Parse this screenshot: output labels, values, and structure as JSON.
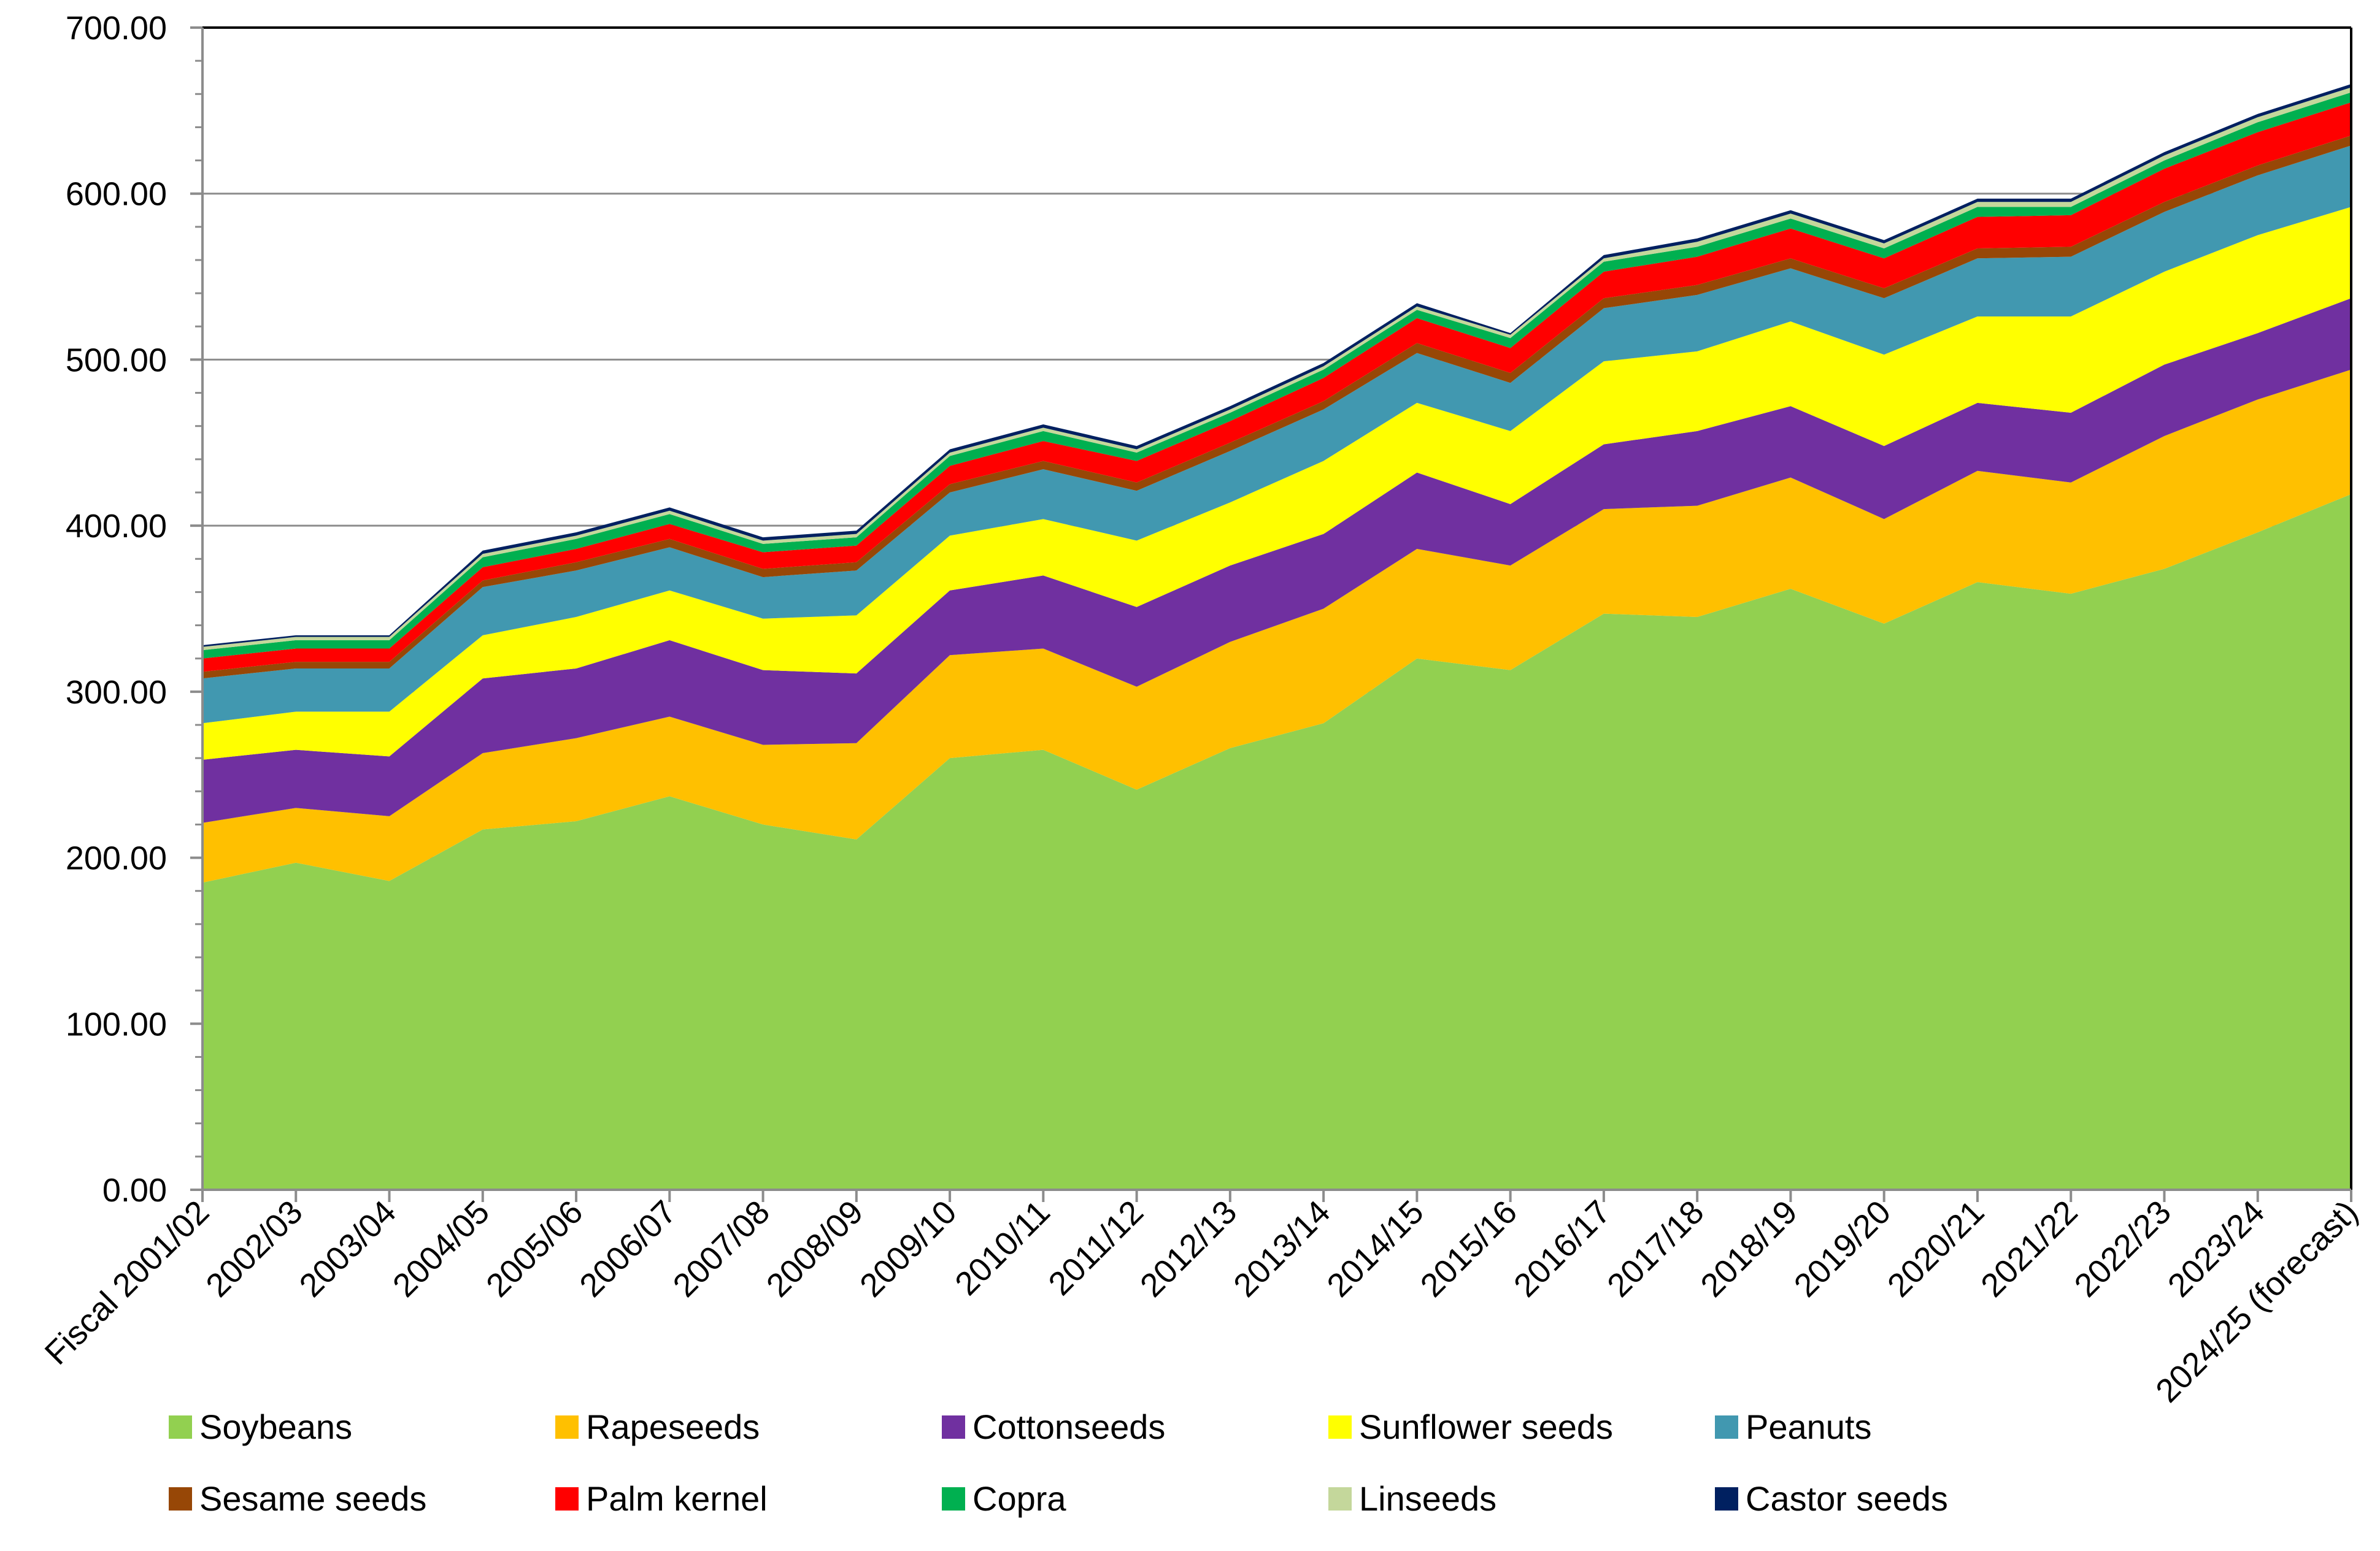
{
  "chart_data": {
    "type": "area",
    "stacked": true,
    "title": "",
    "xlabel": "",
    "ylabel": "",
    "ylim": [
      0,
      700
    ],
    "y_ticks": [
      0,
      100,
      200,
      300,
      400,
      500,
      600,
      700
    ],
    "y_tick_labels": [
      "0.00",
      "100.00",
      "200.00",
      "300.00",
      "400.00",
      "500.00",
      "600.00",
      "700.00"
    ],
    "grid": "horizontal",
    "legend_position": "bottom",
    "categories": [
      "Fiscal 2001/02",
      "2002/03",
      "2003/04",
      "2004/05",
      "2005/06",
      "2006/07",
      "2007/08",
      "2008/09",
      "2009/10",
      "2010/11",
      "2011/12",
      "2012/13",
      "2013/14",
      "2014/15",
      "2015/16",
      "2016/17",
      "2017/18",
      "2018/19",
      "2019/20",
      "2020/21",
      "2021/22",
      "2022/23",
      "2023/24",
      "2024/25 (forecast)"
    ],
    "series": [
      {
        "name": "Soybeans",
        "color": "#92D050",
        "values": [
          185,
          197,
          186,
          217,
          222,
          237,
          220,
          211,
          260,
          265,
          241,
          266,
          281,
          320,
          313,
          347,
          345,
          362,
          341,
          366,
          359,
          374,
          396,
          419
        ]
      },
      {
        "name": "Rapeseeds",
        "color": "#FFC000",
        "values": [
          36,
          33,
          39,
          46,
          50,
          48,
          48,
          58,
          62,
          61,
          62,
          64,
          69,
          66,
          63,
          63,
          67,
          67,
          63,
          67,
          67,
          80,
          80,
          75
        ]
      },
      {
        "name": "Cottonseeds",
        "color": "#7030A0",
        "values": [
          38,
          35,
          36,
          45,
          42,
          46,
          45,
          42,
          39,
          44,
          48,
          46,
          45,
          46,
          37,
          39,
          45,
          43,
          44,
          41,
          42,
          43,
          40,
          43
        ]
      },
      {
        "name": "Sunflower seeds",
        "color": "#FFFF00",
        "values": [
          22,
          23,
          27,
          26,
          31,
          30,
          31,
          35,
          33,
          34,
          40,
          38,
          44,
          42,
          44,
          50,
          48,
          51,
          55,
          52,
          58,
          56,
          59,
          55
        ]
      },
      {
        "name": "Peanuts",
        "color": "#4198B0",
        "values": [
          27,
          26,
          26,
          29,
          28,
          26,
          25,
          27,
          26,
          30,
          30,
          31,
          31,
          30,
          29,
          32,
          34,
          32,
          34,
          35,
          36,
          36,
          36,
          37
        ]
      },
      {
        "name": "Sesame seeds",
        "color": "#974706",
        "values": [
          4,
          4,
          4,
          4,
          5,
          5,
          5,
          5,
          5,
          5,
          5,
          5,
          5,
          6,
          6,
          6,
          6,
          6,
          6,
          6,
          6,
          6,
          6,
          6
        ]
      },
      {
        "name": "Palm kernel",
        "color": "#FF0000",
        "values": [
          8,
          8,
          8,
          8,
          8,
          9,
          10,
          10,
          11,
          12,
          13,
          13,
          14,
          15,
          15,
          16,
          17,
          18,
          18,
          19,
          19,
          20,
          20,
          20
        ]
      },
      {
        "name": "Copra",
        "color": "#00B050",
        "values": [
          5,
          5,
          5,
          6,
          6,
          6,
          5,
          5,
          6,
          6,
          5,
          5,
          5,
          5,
          6,
          6,
          6,
          6,
          6,
          6,
          5,
          5,
          6,
          6
        ]
      },
      {
        "name": "Linseeds",
        "color": "#C4D79B",
        "values": [
          2,
          2,
          2,
          2,
          2,
          2,
          2,
          2,
          2,
          2,
          2,
          2,
          2,
          2,
          2,
          2,
          3,
          3,
          3,
          3,
          3,
          3,
          3,
          3
        ]
      },
      {
        "name": "Castor seeds",
        "color": "#002060",
        "values": [
          1,
          1,
          1,
          2,
          2,
          2,
          2,
          2,
          2,
          2,
          2,
          2,
          2,
          2,
          1,
          2,
          2,
          2,
          2,
          2,
          2,
          2,
          2,
          2
        ]
      }
    ]
  }
}
